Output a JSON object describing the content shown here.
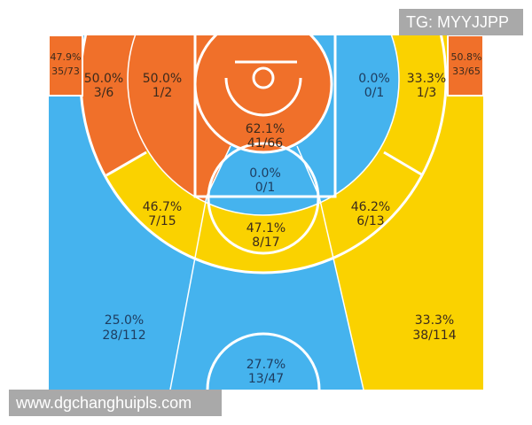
{
  "colors": {
    "hot": "#F0702A",
    "average": "#FAD200",
    "cold": "#45B3EE"
  },
  "zones": {
    "left_corner": {
      "pct": "47.9%",
      "made": "35/73"
    },
    "left_wing_top_three": {
      "pct": "50.0%",
      "made": "3/6"
    },
    "left_mid": {
      "pct": "50.0%",
      "made": "1/2"
    },
    "restricted": {
      "pct": "62.1%",
      "made": "41/66"
    },
    "paint": {
      "pct": "0.0%",
      "made": "0/1"
    },
    "right_mid": {
      "pct": "0.0%",
      "made": "0/1"
    },
    "right_wing_top_three": {
      "pct": "33.3%",
      "made": "1/3"
    },
    "right_corner": {
      "pct": "50.8%",
      "made": "33/65"
    },
    "left_wing_three": {
      "pct": "46.7%",
      "made": "7/15"
    },
    "top_key": {
      "pct": "47.1%",
      "made": "8/17"
    },
    "right_wing_three": {
      "pct": "46.2%",
      "made": "6/13"
    },
    "left_deep": {
      "pct": "25.0%",
      "made": "28/112"
    },
    "right_deep": {
      "pct": "33.3%",
      "made": "38/114"
    },
    "center_deep": {
      "pct": "27.7%",
      "made": "13/47"
    }
  },
  "watermarks": {
    "top": "TG: MYYJJPP",
    "bottom": "www.dgchanghuipls.com"
  }
}
